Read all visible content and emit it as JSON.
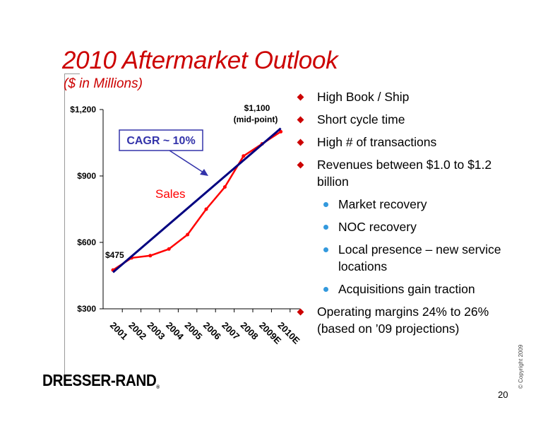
{
  "slide": {
    "title": "2010 Aftermarket Outlook",
    "subtitle": "($ in Millions)",
    "logo": "DRESSER-RAND",
    "logo_mark": "®",
    "copyright": "© Copyright 2009",
    "page_number": "20"
  },
  "bullets": [
    {
      "level": 1,
      "text": "High Book / Ship"
    },
    {
      "level": 1,
      "text": "Short cycle time"
    },
    {
      "level": 1,
      "text": "High # of transactions"
    },
    {
      "level": 1,
      "text": "Revenues between $1.0 to $1.2 billion"
    },
    {
      "level": 2,
      "text": "Market recovery"
    },
    {
      "level": 2,
      "text": "NOC recovery"
    },
    {
      "level": 2,
      "text": "Local presence – new service locations"
    },
    {
      "level": 2,
      "text": "Acquisitions gain traction"
    },
    {
      "level": 1,
      "text": "Operating margins 24% to 26% (based on ’09 projections)"
    }
  ],
  "colors": {
    "title": "#cc0000",
    "sales_line": "#ff0000",
    "trend_line": "#000080",
    "cagr_box": "#3333aa",
    "bullet_level1": "#cc0000",
    "bullet_level2": "#3399dd"
  },
  "chart_data": {
    "type": "line",
    "categories": [
      "2001",
      "2002",
      "2003",
      "2004",
      "2005",
      "2006",
      "2007",
      "2008",
      "2009E",
      "2010E"
    ],
    "ylim": [
      300,
      1200
    ],
    "yticks": [
      300,
      600,
      900,
      1200
    ],
    "ytick_labels": [
      "$300",
      "$600",
      "$900",
      "$1,200"
    ],
    "series": [
      {
        "name": "Sales",
        "color": "#ff0000",
        "values": [
          475,
          530,
          540,
          570,
          635,
          750,
          850,
          990,
          1045,
          1100
        ]
      }
    ],
    "trend": {
      "from": 465,
      "to": 1115,
      "color": "#000080"
    },
    "annotations": {
      "start_label": "$475",
      "end_label_line1": "$1,100",
      "end_label_line2": "(mid-point)",
      "series_label": "Sales",
      "cagr_label": "CAGR ~ 10%"
    }
  }
}
